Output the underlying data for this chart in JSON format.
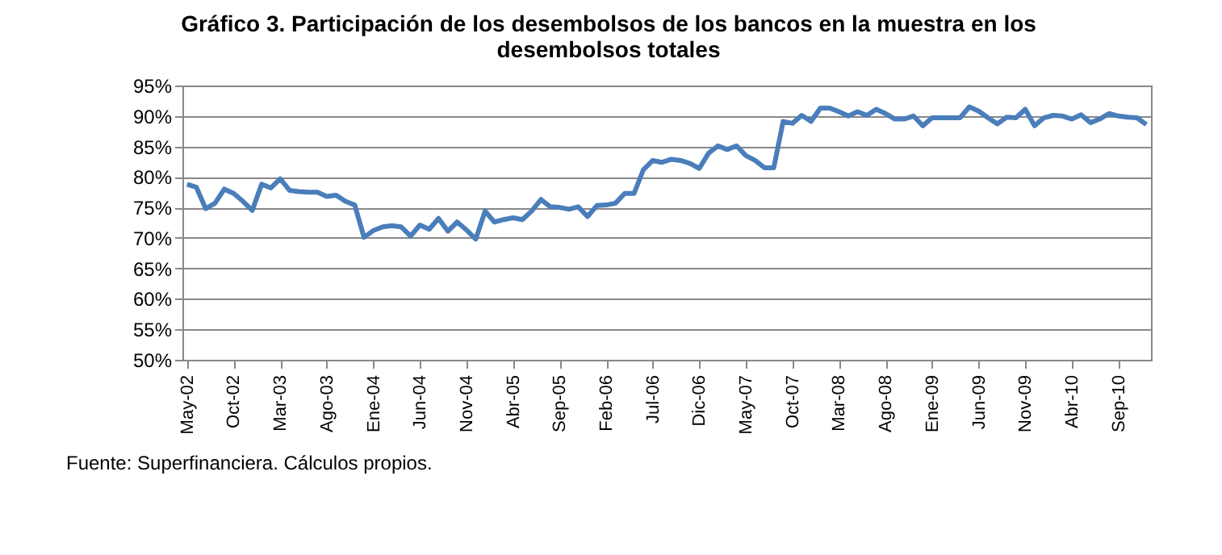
{
  "chart_data": {
    "type": "line",
    "title": "Gráfico 3. Participación de los desembolsos de los bancos en la muestra en los desembolsos totales",
    "categories": [
      "May-02",
      null,
      null,
      null,
      null,
      "Oct-02",
      null,
      null,
      null,
      null,
      "Mar-03",
      null,
      null,
      null,
      null,
      "Ago-03",
      null,
      null,
      null,
      null,
      "Ene-04",
      null,
      null,
      null,
      null,
      "Jun-04",
      null,
      null,
      null,
      null,
      "Nov-04",
      null,
      null,
      null,
      null,
      "Abr-05",
      null,
      null,
      null,
      null,
      "Sep-05",
      null,
      null,
      null,
      null,
      "Feb-06",
      null,
      null,
      null,
      null,
      "Jul-06",
      null,
      null,
      null,
      null,
      "Dic-06",
      null,
      null,
      null,
      null,
      "May-07",
      null,
      null,
      null,
      null,
      "Oct-07",
      null,
      null,
      null,
      null,
      "Mar-08",
      null,
      null,
      null,
      null,
      "Ago-08",
      null,
      null,
      null,
      null,
      "Ene-09",
      null,
      null,
      null,
      null,
      "Jun-09",
      null,
      null,
      null,
      null,
      "Nov-09",
      null,
      null,
      null,
      null,
      "Abr-10",
      null,
      null,
      null,
      null,
      "Sep-10",
      null,
      null,
      null
    ],
    "series": [
      {
        "color": "#4a7ebb",
        "values": [
          78.8,
          78.3,
          74.8,
          75.7,
          78.0,
          77.3,
          76.0,
          74.5,
          78.8,
          78.2,
          79.7,
          77.8,
          77.6,
          77.5,
          77.5,
          76.8,
          77.0,
          76.0,
          75.4,
          70.1,
          71.2,
          71.8,
          72.0,
          71.8,
          70.3,
          72.1,
          71.4,
          73.2,
          71.1,
          72.6,
          71.3,
          69.8,
          74.4,
          72.6,
          73.0,
          73.3,
          73.0,
          74.4,
          76.3,
          75.1,
          75.0,
          74.7,
          75.1,
          73.5,
          75.3,
          75.4,
          75.7,
          77.3,
          77.3,
          81.2,
          82.7,
          82.4,
          82.9,
          82.7,
          82.2,
          81.4,
          83.9,
          85.1,
          84.5,
          85.1,
          83.5,
          82.7,
          81.5,
          81.5,
          89.1,
          88.8,
          90.1,
          89.1,
          91.3,
          91.3,
          90.7,
          90.0,
          90.7,
          90.1,
          91.1,
          90.4,
          89.5,
          89.5,
          90.0,
          88.4,
          89.7,
          89.7,
          89.7,
          89.7,
          91.5,
          90.8,
          89.7,
          88.7,
          89.8,
          89.7,
          91.1,
          88.4,
          89.7,
          90.1,
          90.0,
          89.5,
          90.2,
          88.9,
          89.5,
          90.4,
          90.0,
          89.8,
          89.7,
          88.6
        ]
      }
    ],
    "ylim": [
      50,
      95
    ],
    "yticks": [
      {
        "value": 50,
        "label": "50%"
      },
      {
        "value": 55,
        "label": "55%"
      },
      {
        "value": 60,
        "label": "60%"
      },
      {
        "value": 65,
        "label": "65%"
      },
      {
        "value": 70,
        "label": "70%"
      },
      {
        "value": 75,
        "label": "75%"
      },
      {
        "value": 80,
        "label": "80%"
      },
      {
        "value": 85,
        "label": "85%"
      },
      {
        "value": 90,
        "label": "90%"
      },
      {
        "value": 95,
        "label": "95%"
      }
    ],
    "grid": "y",
    "marker": "none",
    "line_style": "solid",
    "annotations": [
      "Fuente: Superfinanciera. Cálculos propios."
    ]
  }
}
